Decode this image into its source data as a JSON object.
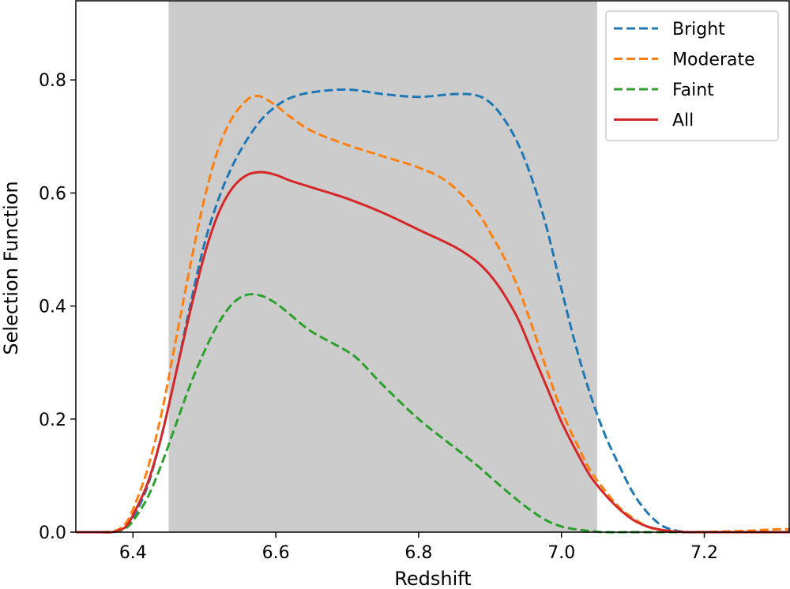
{
  "chart_data": {
    "type": "line",
    "xlabel": "Redshift",
    "ylabel": "Selection Function",
    "xlim": [
      6.32,
      7.32
    ],
    "ylim": [
      0.0,
      0.94
    ],
    "xticks": [
      6.4,
      6.6,
      6.8,
      7.0,
      7.2
    ],
    "xtick_labels": [
      "6.4",
      "6.6",
      "6.8",
      "7.0",
      "7.2"
    ],
    "yticks": [
      0.0,
      0.2,
      0.4,
      0.6,
      0.8
    ],
    "ytick_labels": [
      "0.0",
      "0.2",
      "0.4",
      "0.6",
      "0.8"
    ],
    "shaded_region": {
      "x_start": 6.45,
      "x_end": 7.05,
      "color": "#cccccc"
    },
    "legend_position": "top-right",
    "grid": false,
    "series": [
      {
        "name": "Bright",
        "color": "#1f77b4",
        "dash": true,
        "x": [
          6.32,
          6.35,
          6.37,
          6.38,
          6.39,
          6.4,
          6.42,
          6.44,
          6.46,
          6.48,
          6.5,
          6.52,
          6.54,
          6.56,
          6.58,
          6.6,
          6.62,
          6.65,
          6.7,
          6.75,
          6.8,
          6.85,
          6.88,
          6.9,
          6.92,
          6.94,
          6.96,
          6.98,
          7.0,
          7.02,
          7.04,
          7.06,
          7.08,
          7.1,
          7.12,
          7.14,
          7.16,
          7.18,
          7.2,
          7.25,
          7.32
        ],
        "values": [
          0.0,
          0.0,
          0.0,
          0.002,
          0.008,
          0.025,
          0.08,
          0.17,
          0.28,
          0.4,
          0.51,
          0.59,
          0.65,
          0.695,
          0.73,
          0.753,
          0.768,
          0.778,
          0.783,
          0.775,
          0.77,
          0.775,
          0.773,
          0.76,
          0.73,
          0.685,
          0.62,
          0.535,
          0.43,
          0.33,
          0.245,
          0.175,
          0.12,
          0.07,
          0.035,
          0.012,
          0.003,
          0.0,
          0.0,
          0.0,
          0.0
        ]
      },
      {
        "name": "Moderate",
        "color": "#ff7f0e",
        "dash": true,
        "x": [
          6.32,
          6.35,
          6.37,
          6.38,
          6.39,
          6.4,
          6.42,
          6.44,
          6.46,
          6.48,
          6.5,
          6.52,
          6.54,
          6.56,
          6.57,
          6.58,
          6.6,
          6.62,
          6.65,
          6.7,
          6.75,
          6.8,
          6.84,
          6.88,
          6.9,
          6.92,
          6.94,
          6.96,
          6.98,
          7.0,
          7.02,
          7.04,
          7.06,
          7.08,
          7.1,
          7.12,
          7.14,
          7.16,
          7.18,
          7.25,
          7.3,
          7.32
        ],
        "values": [
          0.0,
          0.0,
          0.001,
          0.005,
          0.016,
          0.04,
          0.11,
          0.21,
          0.34,
          0.47,
          0.59,
          0.68,
          0.735,
          0.765,
          0.771,
          0.77,
          0.755,
          0.735,
          0.71,
          0.685,
          0.665,
          0.645,
          0.62,
          0.57,
          0.53,
          0.485,
          0.43,
          0.36,
          0.285,
          0.215,
          0.16,
          0.11,
          0.075,
          0.045,
          0.025,
          0.01,
          0.003,
          0.001,
          0.0,
          0.002,
          0.005,
          0.005
        ]
      },
      {
        "name": "Faint",
        "color": "#2ca02c",
        "dash": true,
        "x": [
          6.32,
          6.35,
          6.37,
          6.38,
          6.39,
          6.4,
          6.42,
          6.44,
          6.46,
          6.48,
          6.5,
          6.52,
          6.54,
          6.56,
          6.58,
          6.6,
          6.62,
          6.65,
          6.7,
          6.72,
          6.75,
          6.8,
          6.85,
          6.88,
          6.9,
          6.92,
          6.94,
          6.96,
          6.98,
          7.0,
          7.02,
          7.04,
          7.06,
          7.1,
          7.2,
          7.32
        ],
        "values": [
          0.0,
          0.0,
          0.0,
          0.002,
          0.007,
          0.02,
          0.06,
          0.12,
          0.19,
          0.26,
          0.32,
          0.37,
          0.405,
          0.42,
          0.418,
          0.405,
          0.385,
          0.355,
          0.32,
          0.3,
          0.26,
          0.2,
          0.15,
          0.12,
          0.098,
          0.076,
          0.055,
          0.036,
          0.02,
          0.01,
          0.005,
          0.002,
          0.0,
          0.0,
          0.0,
          0.0
        ]
      },
      {
        "name": "All",
        "color": "#d62728",
        "dash": false,
        "x": [
          6.32,
          6.35,
          6.37,
          6.38,
          6.39,
          6.4,
          6.42,
          6.44,
          6.46,
          6.48,
          6.5,
          6.52,
          6.54,
          6.56,
          6.58,
          6.6,
          6.62,
          6.65,
          6.7,
          6.75,
          6.8,
          6.85,
          6.88,
          6.9,
          6.92,
          6.94,
          6.96,
          6.98,
          7.0,
          7.02,
          7.04,
          7.06,
          7.08,
          7.1,
          7.12,
          7.14,
          7.16,
          7.18,
          7.2,
          7.25,
          7.32
        ],
        "values": [
          0.0,
          0.0,
          0.0,
          0.003,
          0.01,
          0.03,
          0.085,
          0.17,
          0.28,
          0.39,
          0.49,
          0.565,
          0.61,
          0.632,
          0.637,
          0.632,
          0.622,
          0.61,
          0.59,
          0.565,
          0.535,
          0.505,
          0.48,
          0.455,
          0.42,
          0.375,
          0.315,
          0.255,
          0.195,
          0.145,
          0.1,
          0.068,
          0.042,
          0.022,
          0.01,
          0.004,
          0.001,
          0.0,
          0.0,
          0.0,
          0.0
        ]
      }
    ]
  }
}
